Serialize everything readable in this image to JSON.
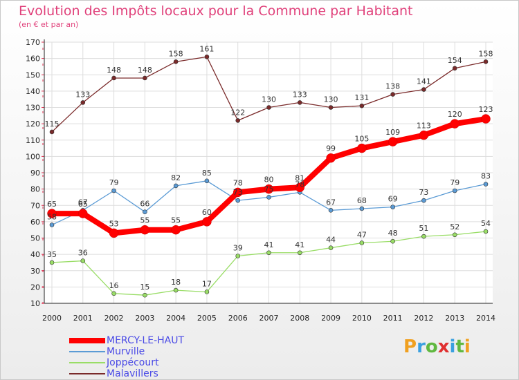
{
  "header": {
    "title": "Evolution des Impôts locaux pour la Commune par Habitant",
    "subtitle": "(en € et par an)"
  },
  "brand": {
    "letters": [
      "P",
      "r",
      "o",
      "x",
      "i",
      "t",
      "i"
    ],
    "colors": [
      "#f0a020",
      "#3aa0e0",
      "#60b840",
      "#e03030",
      "#3aa0e0",
      "#60b840",
      "#f0a020"
    ]
  },
  "chart_data": {
    "type": "line",
    "x": [
      "2000",
      "2001",
      "2002",
      "2003",
      "2004",
      "2005",
      "2006",
      "2007",
      "2008",
      "2009",
      "2010",
      "2011",
      "2012",
      "2013",
      "2014"
    ],
    "yticks": [
      "10",
      "20",
      "30",
      "40",
      "50",
      "60",
      "70",
      "80",
      "90",
      "100",
      "110",
      "120",
      "130",
      "140",
      "150",
      "160",
      "170"
    ],
    "ylim": [
      10,
      170
    ],
    "grid": true,
    "legend_position": "bottom-left",
    "series": [
      {
        "name": "MERCY-LE-HAUT",
        "color": "#ff0000",
        "values": [
          65,
          65,
          53,
          55,
          55,
          60,
          78,
          80,
          81,
          99,
          105,
          109,
          113,
          120,
          123
        ]
      },
      {
        "name": "Murville",
        "color": "#5b9bd5",
        "values": [
          58,
          67,
          79,
          66,
          82,
          85,
          73,
          75,
          78,
          67,
          68,
          69,
          73,
          79,
          83
        ]
      },
      {
        "name": "Joppécourt",
        "color": "#99dd66",
        "values": [
          35,
          36,
          16,
          15,
          18,
          17,
          39,
          41,
          41,
          44,
          47,
          48,
          51,
          52,
          54
        ]
      },
      {
        "name": "Malavillers",
        "color": "#7a2a2a",
        "values": [
          115,
          133,
          148,
          148,
          158,
          161,
          122,
          130,
          133,
          130,
          131,
          138,
          141,
          154,
          158
        ]
      }
    ]
  }
}
